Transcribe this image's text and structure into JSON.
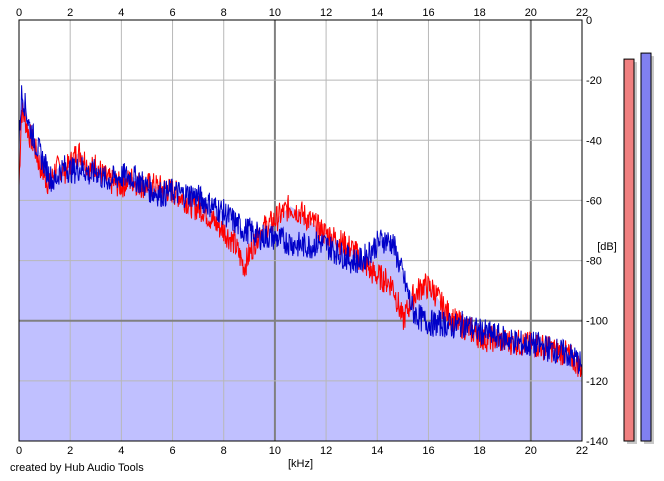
{
  "chart_data": {
    "type": "line",
    "xlabel": "[kHz]",
    "ylabel": "[dB]",
    "xlim": [
      0,
      22
    ],
    "ylim": [
      -140,
      0
    ],
    "x_ticks": [
      0,
      2,
      4,
      6,
      8,
      10,
      12,
      14,
      16,
      18,
      20,
      22
    ],
    "y_ticks": [
      0,
      -20,
      -40,
      -60,
      -80,
      -100,
      -120,
      -140
    ],
    "grid": true,
    "series": [
      {
        "color": "#ff0000",
        "x": [
          0.0,
          0.1,
          0.2,
          0.4,
          0.6,
          0.8,
          1.0,
          1.2,
          1.4,
          1.6,
          1.8,
          2.0,
          2.2,
          2.4,
          2.6,
          2.8,
          3.0,
          3.3,
          3.6,
          4.0,
          4.4,
          4.8,
          5.2,
          5.6,
          6.0,
          6.4,
          6.8,
          7.2,
          7.6,
          8.0,
          8.4,
          8.8,
          9.0,
          9.4,
          9.8,
          10.2,
          10.6,
          11.0,
          11.4,
          11.8,
          12.2,
          12.6,
          13.0,
          13.4,
          13.8,
          14.2,
          14.6,
          15.0,
          15.4,
          15.8,
          16.2,
          16.6,
          17.0,
          17.4,
          17.8,
          18.2,
          18.6,
          19.0,
          19.4,
          19.8,
          20.2,
          20.6,
          21.0,
          21.4,
          21.8,
          22.0
        ],
        "y": [
          -55,
          -30,
          -32,
          -38,
          -42,
          -48,
          -52,
          -55,
          -50,
          -49,
          -50,
          -48,
          -45,
          -44,
          -47,
          -50,
          -48,
          -52,
          -54,
          -55,
          -53,
          -55,
          -55,
          -56,
          -57,
          -59,
          -62,
          -63,
          -67,
          -70,
          -74,
          -82,
          -78,
          -70,
          -68,
          -65,
          -62,
          -64,
          -67,
          -70,
          -72,
          -74,
          -76,
          -80,
          -84,
          -86,
          -88,
          -100,
          -92,
          -88,
          -90,
          -96,
          -100,
          -102,
          -104,
          -106,
          -106,
          -107,
          -107,
          -108,
          -108,
          -109,
          -110,
          -111,
          -114,
          -116
        ]
      },
      {
        "color": "#0000c8",
        "x": [
          0.0,
          0.1,
          0.2,
          0.4,
          0.6,
          0.8,
          1.0,
          1.2,
          1.4,
          1.6,
          1.8,
          2.0,
          2.2,
          2.4,
          2.6,
          2.8,
          3.0,
          3.3,
          3.6,
          4.0,
          4.4,
          4.8,
          5.2,
          5.6,
          6.0,
          6.4,
          6.8,
          7.2,
          7.6,
          8.0,
          8.4,
          8.8,
          9.0,
          9.4,
          9.8,
          10.2,
          10.6,
          11.0,
          11.4,
          11.8,
          12.2,
          12.6,
          13.0,
          13.4,
          13.8,
          14.2,
          14.6,
          15.0,
          15.4,
          15.8,
          16.2,
          16.6,
          17.0,
          17.4,
          17.8,
          18.2,
          18.6,
          19.0,
          19.4,
          19.8,
          20.2,
          20.6,
          21.0,
          21.4,
          21.8,
          22.0
        ],
        "y": [
          -40,
          -25,
          -27,
          -35,
          -40,
          -44,
          -48,
          -52,
          -54,
          -50,
          -49,
          -50,
          -50,
          -49,
          -50,
          -52,
          -50,
          -53,
          -53,
          -52,
          -52,
          -54,
          -57,
          -58,
          -57,
          -58,
          -58,
          -60,
          -62,
          -64,
          -67,
          -70,
          -70,
          -72,
          -72,
          -73,
          -74,
          -75,
          -75,
          -74,
          -76,
          -78,
          -80,
          -80,
          -76,
          -73,
          -74,
          -85,
          -97,
          -100,
          -101,
          -101,
          -102,
          -101,
          -103,
          -104,
          -105,
          -106,
          -107,
          -108,
          -108,
          -109,
          -110,
          -111,
          -113,
          -115
        ]
      }
    ],
    "level_meters": [
      {
        "color": "#f08080",
        "level_db": -13
      },
      {
        "color": "#8080f0",
        "level_db": -11
      }
    ]
  },
  "credit": "created by Hub Audio Tools",
  "colors": {
    "fill": "#c0c0ff",
    "grid_major": "#808080",
    "grid_minor": "#b8b8b8"
  }
}
